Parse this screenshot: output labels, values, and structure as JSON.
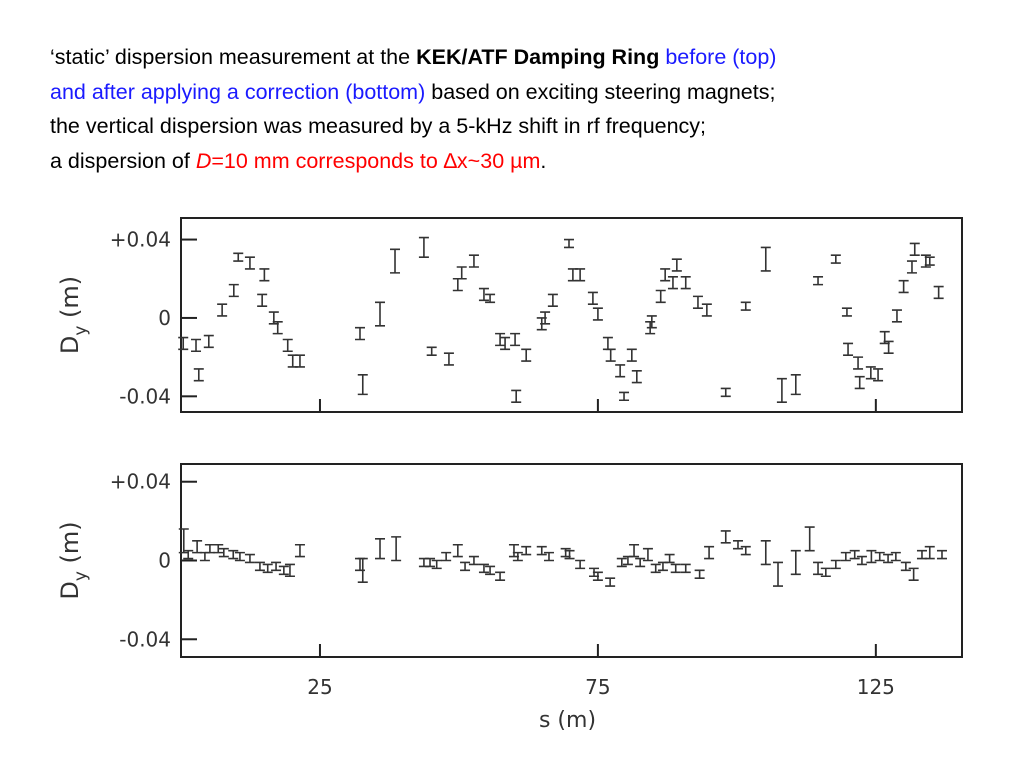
{
  "caption": {
    "lines": [
      [
        {
          "text": "‘static’ dispersion measurement at the ",
          "color": "#000000"
        },
        {
          "text": "KEK/ATF Damping Ring",
          "color": "#000000",
          "bold": true
        },
        {
          "text": " before (top)",
          "color": "#1a1aff"
        }
      ],
      [
        {
          "text": "and after applying a correction (bottom)",
          "color": "#1a1aff"
        },
        {
          "text": " based on exciting steering magnets;",
          "color": "#000000"
        }
      ],
      [
        {
          "text": "the vertical dispersion was measured by a 5-kHz shift in rf frequency;",
          "color": "#000000"
        }
      ],
      [
        {
          "text": "a dispersion of ",
          "color": "#000000"
        },
        {
          "text": "D",
          "color": "#ff0000",
          "italic": true
        },
        {
          "text": "=10 mm corresponds to ∆x~30 µm",
          "color": "#ff0000"
        },
        {
          "text": ".",
          "color": "#000000"
        }
      ]
    ]
  },
  "chart_data": [
    {
      "type": "errorbar",
      "ylabel": "D",
      "ylabel_sub": "y",
      "ylabel_unit": " (m)",
      "color": "#333333",
      "xlim": [
        0,
        140.5
      ],
      "xticks": [
        25,
        75,
        125
      ],
      "xtick_labels": false,
      "ylim": [
        -0.048,
        0.051
      ],
      "yticks": [
        {
          "value": 0.04,
          "label": "+0.04"
        },
        0,
        -0.04
      ],
      "series": [
        {
          "x": [
            0.4,
            2.7,
            3.2,
            5.0,
            7.4,
            9.5,
            10.3,
            12.4,
            14.6,
            15.0,
            16.7,
            17.4,
            19.2,
            20.1,
            21.4,
            32.2,
            32.7,
            35.8,
            38.5,
            43.7,
            45.1,
            48.2,
            49.8,
            50.5,
            52.7,
            54.5,
            55.6,
            57.4,
            58.3,
            60.1,
            60.3,
            62.1,
            64.9,
            65.5,
            66.9,
            69.8,
            70.5,
            71.8,
            74.1,
            75.0,
            76.8,
            77.3,
            79.0,
            79.7,
            81.1,
            82.0,
            84.4,
            84.7,
            86.3,
            87.1,
            88.5,
            89.2,
            90.8,
            93.0,
            94.6,
            98.0,
            101.6,
            105.2,
            108.1,
            110.6,
            114.6,
            117.8,
            119.8,
            120.0,
            121.8,
            122.1,
            124.1,
            125.4,
            126.6,
            127.3,
            128.8,
            130.0,
            131.5,
            132.0,
            134.0,
            134.7,
            136.3
          ],
          "values": [
            -0.013,
            -0.014,
            -0.029,
            -0.012,
            0.004,
            0.014,
            0.031,
            0.028,
            0.009,
            0.022,
            0.0,
            -0.005,
            -0.014,
            -0.022,
            -0.022,
            -0.008,
            -0.034,
            0.002,
            0.029,
            0.036,
            -0.017,
            -0.021,
            0.017,
            0.023,
            0.029,
            0.012,
            0.01,
            -0.011,
            -0.013,
            -0.011,
            -0.04,
            -0.019,
            -0.003,
            0.0,
            0.009,
            0.038,
            0.022,
            0.022,
            0.01,
            0.002,
            -0.013,
            -0.019,
            -0.027,
            -0.04,
            -0.019,
            -0.03,
            -0.005,
            -0.002,
            0.011,
            0.022,
            0.018,
            0.027,
            0.018,
            0.008,
            0.004,
            -0.038,
            0.006,
            0.03,
            -0.037,
            -0.034,
            0.019,
            0.03,
            0.003,
            -0.016,
            -0.023,
            -0.033,
            -0.028,
            -0.029,
            -0.01,
            -0.015,
            0.001,
            0.016,
            0.026,
            0.035,
            0.029,
            0.029,
            0.013
          ],
          "errors": [
            0.003,
            0.003,
            0.003,
            0.003,
            0.003,
            0.003,
            0.002,
            0.003,
            0.003,
            0.003,
            0.003,
            0.003,
            0.003,
            0.003,
            0.003,
            0.003,
            0.005,
            0.006,
            0.006,
            0.005,
            0.002,
            0.003,
            0.003,
            0.003,
            0.003,
            0.003,
            0.002,
            0.003,
            0.003,
            0.003,
            0.003,
            0.003,
            0.003,
            0.003,
            0.003,
            0.002,
            0.003,
            0.003,
            0.003,
            0.003,
            0.003,
            0.003,
            0.003,
            0.002,
            0.003,
            0.003,
            0.003,
            0.003,
            0.003,
            0.003,
            0.003,
            0.003,
            0.003,
            0.003,
            0.003,
            0.002,
            0.002,
            0.006,
            0.006,
            0.005,
            0.002,
            0.002,
            0.002,
            0.003,
            0.003,
            0.003,
            0.003,
            0.003,
            0.003,
            0.003,
            0.003,
            0.003,
            0.003,
            0.003,
            0.003,
            0.002,
            0.003
          ]
        }
      ]
    },
    {
      "type": "errorbar",
      "ylabel": "D",
      "ylabel_sub": "y",
      "ylabel_unit": " (m)",
      "xlabel": "s (m)",
      "color": "#333333",
      "xlim": [
        0,
        140.5
      ],
      "xticks": [
        25,
        75,
        125
      ],
      "xtick_labels": true,
      "ylim": [
        -0.049,
        0.049
      ],
      "yticks": [
        {
          "value": 0.04,
          "label": "+0.04"
        },
        0,
        -0.04
      ],
      "series": [
        {
          "x": [
            0.5,
            1.3,
            2.9,
            4.3,
            5.2,
            6.7,
            7.7,
            9.4,
            10.6,
            12.4,
            14.2,
            15.6,
            17.1,
            18.5,
            19.6,
            21.4,
            32.2,
            32.7,
            35.8,
            38.7,
            43.7,
            44.8,
            46.0,
            47.7,
            49.8,
            51.1,
            52.7,
            54.5,
            55.6,
            57.4,
            59.9,
            60.6,
            62.1,
            64.9,
            66.2,
            69.2,
            69.9,
            71.8,
            74.3,
            75.0,
            77.2,
            79.3,
            80.4,
            81.5,
            82.6,
            84.0,
            85.4,
            86.7,
            87.9,
            89.0,
            90.8,
            93.3,
            95.0,
            98.0,
            100.2,
            101.6,
            105.2,
            107.4,
            110.6,
            113.1,
            114.6,
            116.0,
            117.8,
            119.6,
            121.2,
            122.5,
            124.2,
            125.7,
            127.2,
            128.6,
            130.4,
            131.8,
            133.3,
            134.7,
            136.9
          ],
          "values": [
            0.01,
            0.003,
            0.007,
            0.002,
            0.006,
            0.006,
            0.004,
            0.003,
            0.002,
            0.001,
            -0.003,
            -0.004,
            -0.003,
            -0.005,
            -0.005,
            0.005,
            -0.002,
            -0.005,
            0.006,
            0.006,
            -0.001,
            -0.001,
            -0.002,
            0.002,
            0.005,
            -0.003,
            0.0,
            -0.004,
            -0.005,
            -0.008,
            0.005,
            0.002,
            0.005,
            0.005,
            0.002,
            0.004,
            0.003,
            -0.002,
            -0.006,
            -0.008,
            -0.011,
            -0.001,
            0.0,
            0.005,
            -0.001,
            0.003,
            -0.004,
            -0.003,
            0.001,
            -0.004,
            -0.004,
            -0.007,
            0.004,
            0.012,
            0.008,
            0.005,
            0.004,
            -0.007,
            -0.001,
            0.011,
            -0.004,
            -0.006,
            -0.002,
            0.002,
            0.003,
            0.0,
            0.002,
            0.002,
            0.001,
            0.002,
            -0.003,
            -0.007,
            0.003,
            0.004,
            0.003
          ],
          "errors": [
            0.006,
            0.002,
            0.003,
            0.002,
            0.002,
            0.002,
            0.002,
            0.002,
            0.002,
            0.002,
            0.002,
            0.002,
            0.002,
            0.002,
            0.003,
            0.003,
            0.003,
            0.006,
            0.005,
            0.006,
            0.002,
            0.002,
            0.002,
            0.002,
            0.003,
            0.002,
            0.002,
            0.002,
            0.002,
            0.002,
            0.003,
            0.002,
            0.002,
            0.002,
            0.002,
            0.002,
            0.002,
            0.002,
            0.002,
            0.002,
            0.002,
            0.002,
            0.002,
            0.003,
            0.002,
            0.003,
            0.002,
            0.002,
            0.002,
            0.002,
            0.002,
            0.002,
            0.003,
            0.003,
            0.002,
            0.002,
            0.006,
            0.006,
            0.006,
            0.006,
            0.003,
            0.002,
            0.002,
            0.002,
            0.002,
            0.002,
            0.003,
            0.002,
            0.002,
            0.002,
            0.002,
            0.003,
            0.002,
            0.003,
            0.002
          ]
        }
      ]
    }
  ]
}
